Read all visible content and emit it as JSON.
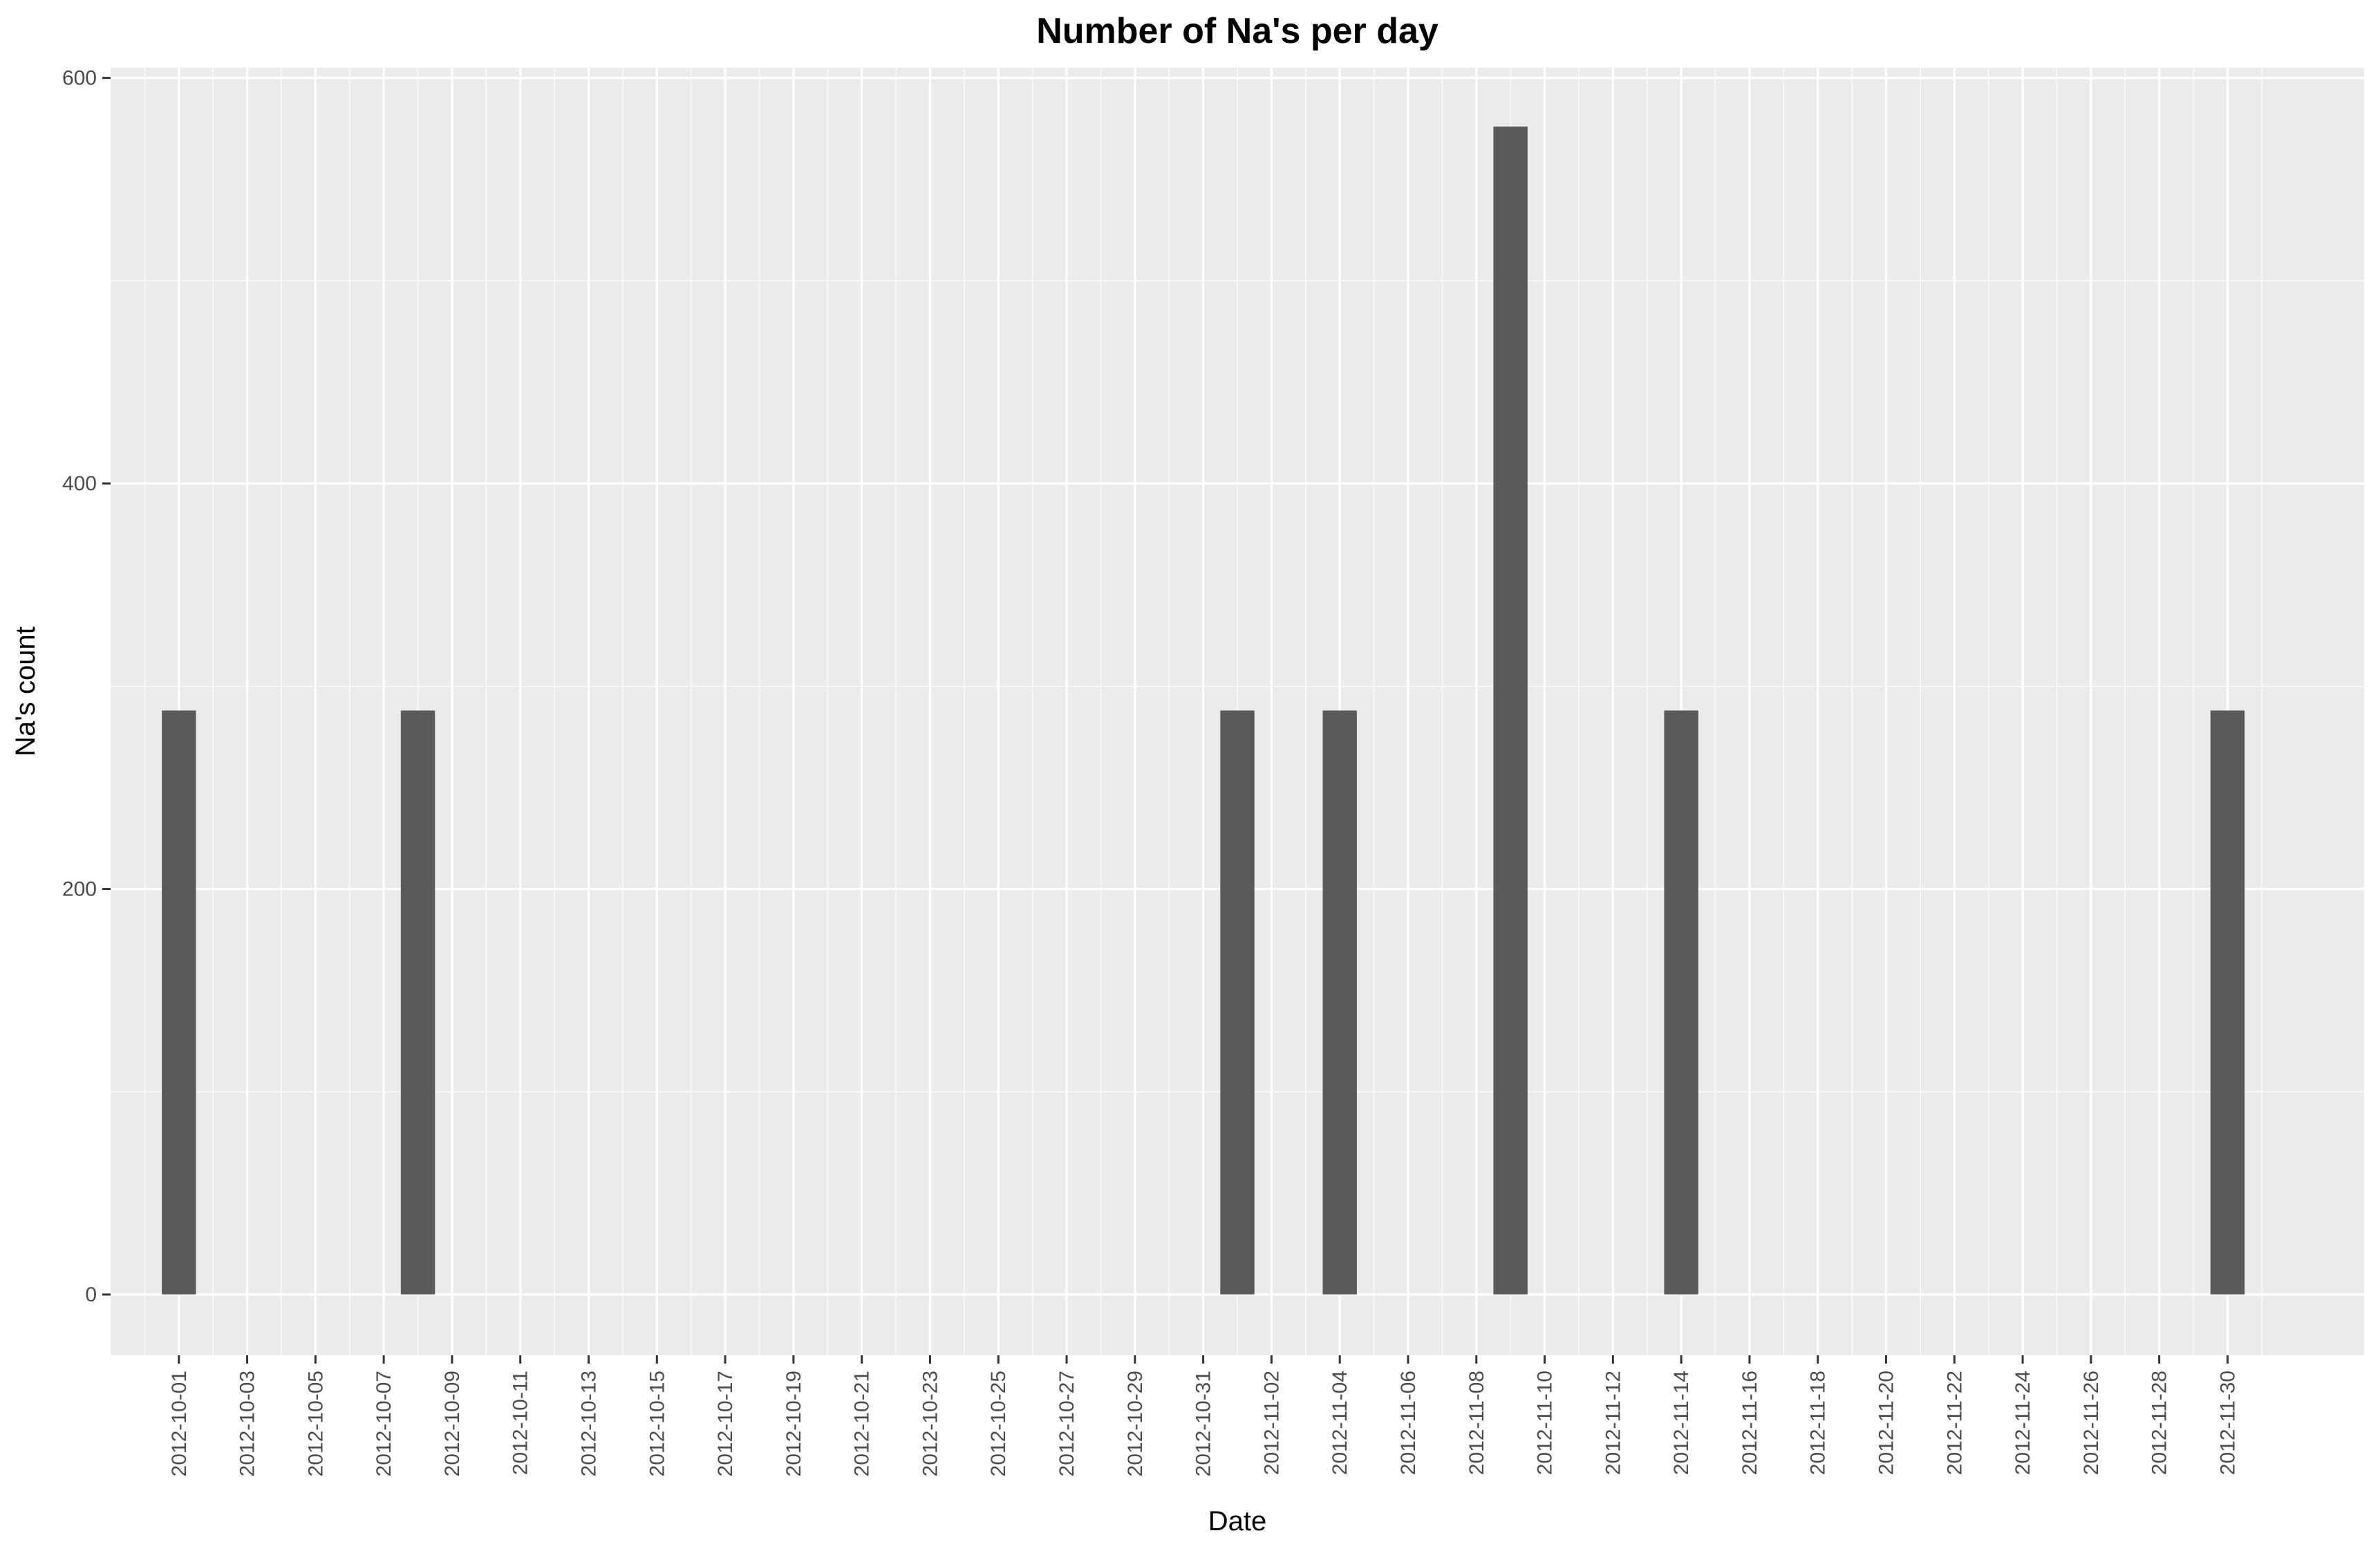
{
  "chart_data": {
    "type": "bar",
    "title": "Number of Na's per day",
    "xlabel": "Date",
    "ylabel": "Na's count",
    "x_range": [
      "2012-09-29",
      "2012-12-04"
    ],
    "ylim": [
      -30,
      605
    ],
    "yticks": [
      0,
      200,
      400,
      600
    ],
    "ytick_labels": [
      "0",
      "200",
      "400",
      "600"
    ],
    "xtick_labels": [
      "2012-10-01",
      "2012-10-03",
      "2012-10-05",
      "2012-10-07",
      "2012-10-09",
      "2012-10-11",
      "2012-10-13",
      "2012-10-15",
      "2012-10-17",
      "2012-10-19",
      "2012-10-21",
      "2012-10-23",
      "2012-10-25",
      "2012-10-27",
      "2012-10-29",
      "2012-10-31",
      "2012-11-02",
      "2012-11-04",
      "2012-11-06",
      "2012-11-08",
      "2012-11-10",
      "2012-11-12",
      "2012-11-14",
      "2012-11-16",
      "2012-11-18",
      "2012-11-20",
      "2012-11-22",
      "2012-11-24",
      "2012-11-26",
      "2012-11-28",
      "2012-11-30"
    ],
    "bars": [
      {
        "date": "2012-10-01",
        "value": 288
      },
      {
        "date": "2012-10-08",
        "value": 288
      },
      {
        "date": "2012-11-01",
        "value": 288
      },
      {
        "date": "2012-11-04",
        "value": 288
      },
      {
        "date": "2012-11-09",
        "value": 576
      },
      {
        "date": "2012-11-14",
        "value": 288
      },
      {
        "date": "2012-11-30",
        "value": 288
      }
    ],
    "grid": true,
    "colors": {
      "panel": "#ebebeb",
      "grid": "#ffffff",
      "bar": "#595959",
      "tick": "#333333"
    }
  }
}
